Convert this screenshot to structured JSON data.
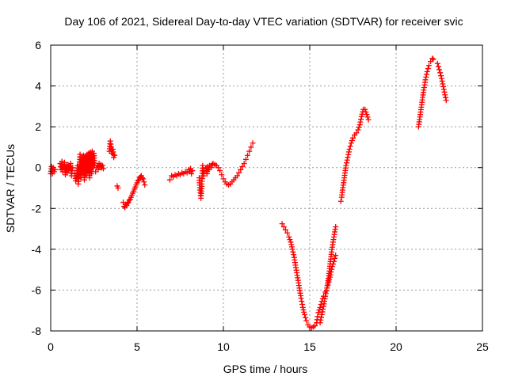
{
  "chart_data": {
    "type": "scatter",
    "title": "Day 106 of 2021, Sidereal Day-to-day VTEC variation (SDTVAR) for receiver svic",
    "xlabel": "GPS time / hours",
    "ylabel": "SDTVAR / TECUs",
    "xlim": [
      0,
      25
    ],
    "ylim": [
      -8,
      6
    ],
    "xticks": [
      0,
      5,
      10,
      15,
      20,
      25
    ],
    "yticks": [
      -8,
      -6,
      -4,
      -2,
      0,
      2,
      4,
      6
    ],
    "grid": true,
    "marker": "+",
    "color": "#ff0000",
    "segments": [
      [
        [
          0.0,
          -0.3
        ],
        [
          0.05,
          0.05
        ],
        [
          0.1,
          -0.3
        ],
        [
          0.15,
          0.0
        ],
        [
          0.2,
          -0.2
        ],
        [
          0.25,
          -0.1
        ]
      ],
      [
        [
          0.55,
          0.2
        ],
        [
          0.6,
          -0.1
        ],
        [
          0.65,
          0.3
        ],
        [
          0.7,
          -0.2
        ],
        [
          0.75,
          0.0
        ],
        [
          0.8,
          0.25
        ],
        [
          0.85,
          -0.35
        ],
        [
          0.9,
          0.1
        ],
        [
          0.95,
          -0.25
        ],
        [
          1.0,
          0.15
        ],
        [
          1.05,
          -0.1
        ],
        [
          1.1,
          0.05
        ],
        [
          1.15,
          0.2
        ],
        [
          1.2,
          -0.4
        ],
        [
          1.25,
          0.0
        ]
      ],
      [
        [
          1.4,
          -0.3
        ],
        [
          1.45,
          -0.65
        ],
        [
          1.5,
          -0.5
        ],
        [
          1.55,
          0.1
        ],
        [
          1.6,
          -0.8
        ],
        [
          1.65,
          -0.2
        ],
        [
          1.7,
          0.65
        ],
        [
          1.75,
          -0.5
        ],
        [
          1.8,
          0.5
        ],
        [
          1.85,
          -0.3
        ],
        [
          1.9,
          0.6
        ],
        [
          1.95,
          -0.6
        ],
        [
          2.0,
          0.55
        ],
        [
          2.05,
          -0.4
        ],
        [
          2.1,
          0.65
        ],
        [
          2.15,
          -0.2
        ],
        [
          2.2,
          0.7
        ],
        [
          2.25,
          -0.5
        ],
        [
          2.3,
          0.75
        ],
        [
          2.35,
          -0.3
        ],
        [
          2.4,
          0.8
        ],
        [
          2.45,
          0.0
        ],
        [
          2.5,
          0.7
        ],
        [
          2.55,
          0.1
        ]
      ],
      [
        [
          2.6,
          -0.2
        ],
        [
          2.65,
          0.0
        ],
        [
          2.7,
          0.1
        ],
        [
          2.75,
          -0.1
        ],
        [
          2.8,
          0.2
        ],
        [
          2.85,
          0.05
        ],
        [
          2.9,
          0.15
        ],
        [
          2.95,
          0.0
        ],
        [
          3.0,
          0.1
        ],
        [
          3.05,
          -0.05
        ]
      ],
      [
        [
          3.4,
          0.8
        ],
        [
          3.45,
          1.3
        ],
        [
          3.5,
          1.0
        ],
        [
          3.55,
          0.7
        ],
        [
          3.6,
          0.9
        ],
        [
          3.65,
          0.5
        ],
        [
          3.7,
          0.6
        ]
      ],
      [
        [
          3.85,
          -0.9
        ],
        [
          3.9,
          -1.0
        ]
      ],
      [
        [
          4.2,
          -1.7
        ],
        [
          4.25,
          -1.9
        ],
        [
          4.3,
          -1.95
        ],
        [
          4.35,
          -1.8
        ],
        [
          4.4,
          -1.85
        ],
        [
          4.45,
          -1.75
        ],
        [
          4.5,
          -1.7
        ],
        [
          4.55,
          -1.6
        ],
        [
          4.6,
          -1.55
        ],
        [
          4.65,
          -1.45
        ],
        [
          4.7,
          -1.35
        ],
        [
          4.75,
          -1.25
        ],
        [
          4.8,
          -1.15
        ],
        [
          4.85,
          -1.05
        ],
        [
          4.9,
          -0.95
        ],
        [
          4.95,
          -0.85
        ],
        [
          5.0,
          -0.75
        ],
        [
          5.05,
          -0.65
        ],
        [
          5.1,
          -0.6
        ],
        [
          5.15,
          -0.5
        ],
        [
          5.2,
          -0.45
        ],
        [
          5.25,
          -0.4
        ],
        [
          5.3,
          -0.5
        ],
        [
          5.35,
          -0.55
        ],
        [
          5.4,
          -0.7
        ],
        [
          5.45,
          -0.85
        ]
      ],
      [
        [
          6.9,
          -0.6
        ],
        [
          7.0,
          -0.4
        ],
        [
          7.1,
          -0.45
        ],
        [
          7.2,
          -0.35
        ],
        [
          7.3,
          -0.4
        ],
        [
          7.4,
          -0.3
        ],
        [
          7.5,
          -0.35
        ],
        [
          7.6,
          -0.25
        ],
        [
          7.7,
          -0.3
        ],
        [
          7.8,
          -0.2
        ],
        [
          7.9,
          -0.25
        ],
        [
          8.0,
          -0.1
        ],
        [
          8.05,
          -0.2
        ],
        [
          8.1,
          -0.05
        ],
        [
          8.15,
          -0.3
        ],
        [
          8.2,
          -0.15
        ]
      ],
      [
        [
          8.6,
          -0.5
        ],
        [
          8.65,
          -1.1
        ],
        [
          8.7,
          -1.5
        ],
        [
          8.75,
          -0.8
        ],
        [
          8.8,
          0.1
        ],
        [
          8.85,
          -0.4
        ],
        [
          8.9,
          -0.2
        ],
        [
          9.0,
          0.0
        ],
        [
          9.05,
          -0.3
        ],
        [
          9.1,
          0.05
        ],
        [
          9.15,
          -0.1
        ],
        [
          9.2,
          0.1
        ],
        [
          9.3,
          0.0
        ],
        [
          9.35,
          0.15
        ],
        [
          9.4,
          0.2
        ],
        [
          9.5,
          0.15
        ],
        [
          9.6,
          0.1
        ],
        [
          9.7,
          0.0
        ],
        [
          9.8,
          -0.15
        ],
        [
          9.9,
          -0.35
        ],
        [
          10.0,
          -0.55
        ],
        [
          10.1,
          -0.7
        ],
        [
          10.2,
          -0.8
        ],
        [
          10.3,
          -0.85
        ],
        [
          10.4,
          -0.8
        ],
        [
          10.5,
          -0.7
        ],
        [
          10.6,
          -0.6
        ],
        [
          10.7,
          -0.5
        ],
        [
          10.8,
          -0.4
        ],
        [
          10.9,
          -0.25
        ],
        [
          11.0,
          -0.1
        ],
        [
          11.1,
          0.05
        ],
        [
          11.2,
          0.2
        ],
        [
          11.3,
          0.4
        ],
        [
          11.4,
          0.6
        ],
        [
          11.5,
          0.8
        ],
        [
          11.6,
          1.0
        ],
        [
          11.7,
          1.2
        ]
      ],
      [
        [
          13.4,
          -2.75
        ],
        [
          13.5,
          -2.9
        ],
        [
          13.6,
          -3.05
        ],
        [
          13.7,
          -3.2
        ],
        [
          13.8,
          -3.4
        ],
        [
          13.9,
          -3.65
        ],
        [
          14.0,
          -4.0
        ],
        [
          14.1,
          -4.4
        ],
        [
          14.2,
          -4.9
        ],
        [
          14.3,
          -5.4
        ],
        [
          14.4,
          -5.9
        ],
        [
          14.5,
          -6.4
        ],
        [
          14.6,
          -6.85
        ],
        [
          14.7,
          -7.2
        ],
        [
          14.8,
          -7.5
        ],
        [
          14.9,
          -7.7
        ],
        [
          15.0,
          -7.8
        ],
        [
          15.1,
          -7.85
        ],
        [
          15.2,
          -7.8
        ],
        [
          15.3,
          -7.75
        ],
        [
          15.4,
          -7.6
        ],
        [
          15.45,
          -7.3
        ],
        [
          15.5,
          -7.1
        ],
        [
          15.6,
          -6.85
        ],
        [
          15.7,
          -6.55
        ],
        [
          15.8,
          -6.3
        ],
        [
          15.9,
          -6.1
        ],
        [
          16.0,
          -5.9
        ],
        [
          16.1,
          -5.6
        ],
        [
          16.2,
          -5.25
        ],
        [
          16.3,
          -4.85
        ],
        [
          16.4,
          -4.6
        ],
        [
          16.5,
          -4.3
        ]
      ],
      [
        [
          15.6,
          -7.6
        ],
        [
          15.7,
          -7.2
        ],
        [
          15.8,
          -6.8
        ],
        [
          15.9,
          -6.3
        ],
        [
          16.0,
          -5.9
        ],
        [
          16.1,
          -5.3
        ],
        [
          16.2,
          -4.6
        ],
        [
          16.3,
          -3.9
        ],
        [
          16.4,
          -3.4
        ],
        [
          16.5,
          -2.9
        ]
      ],
      [
        [
          16.8,
          -1.65
        ],
        [
          16.85,
          -1.45
        ],
        [
          16.9,
          -1.1
        ],
        [
          17.0,
          -0.5
        ],
        [
          17.1,
          0.1
        ],
        [
          17.2,
          0.5
        ],
        [
          17.3,
          0.9
        ],
        [
          17.4,
          1.2
        ],
        [
          17.5,
          1.45
        ],
        [
          17.6,
          1.6
        ],
        [
          17.7,
          1.7
        ],
        [
          17.8,
          1.85
        ],
        [
          17.9,
          2.1
        ],
        [
          18.0,
          2.5
        ],
        [
          18.1,
          2.85
        ],
        [
          18.2,
          2.85
        ],
        [
          18.3,
          2.6
        ],
        [
          18.4,
          2.35
        ]
      ],
      [
        [
          21.3,
          2.0
        ],
        [
          21.4,
          2.6
        ],
        [
          21.5,
          3.2
        ],
        [
          21.6,
          3.8
        ],
        [
          21.7,
          4.3
        ],
        [
          21.8,
          4.7
        ],
        [
          21.9,
          5.0
        ],
        [
          22.0,
          5.2
        ],
        [
          22.1,
          5.35
        ],
        [
          22.15,
          5.3
        ]
      ],
      [
        [
          22.4,
          5.1
        ],
        [
          22.5,
          4.8
        ],
        [
          22.6,
          4.5
        ],
        [
          22.7,
          4.1
        ],
        [
          22.8,
          3.7
        ],
        [
          22.9,
          3.3
        ]
      ]
    ]
  }
}
